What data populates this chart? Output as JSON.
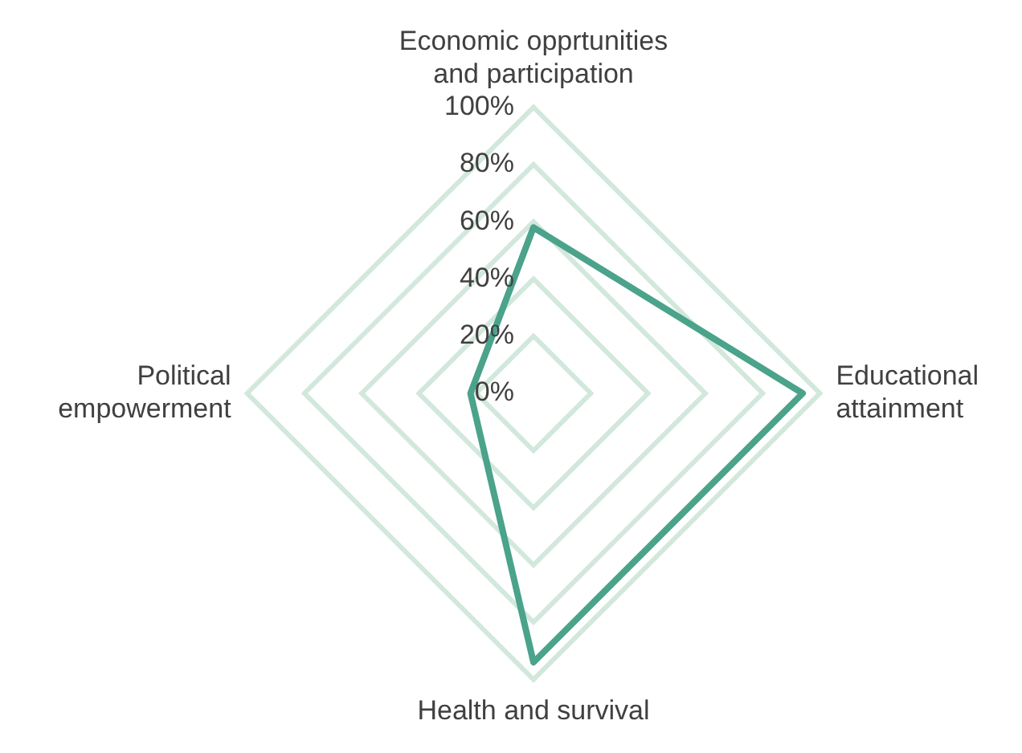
{
  "chart_data": {
    "type": "radar",
    "categories": [
      "Economic opprtunities and participation",
      "Educational attainment",
      "Health and survival",
      "Political empowerment"
    ],
    "series": [
      {
        "color": "#4aa38a",
        "values": [
          58,
          94,
          94,
          22
        ]
      }
    ],
    "ylim": [
      0,
      100
    ],
    "yticks": [
      {
        "value": 0,
        "label": "0%"
      },
      {
        "value": 20,
        "label": "20%"
      },
      {
        "value": 40,
        "label": "40%"
      },
      {
        "value": 60,
        "label": "60%"
      },
      {
        "value": 80,
        "label": "80%"
      },
      {
        "value": 100,
        "label": "100%"
      }
    ],
    "grid": true,
    "legend": false,
    "marker": "none"
  }
}
